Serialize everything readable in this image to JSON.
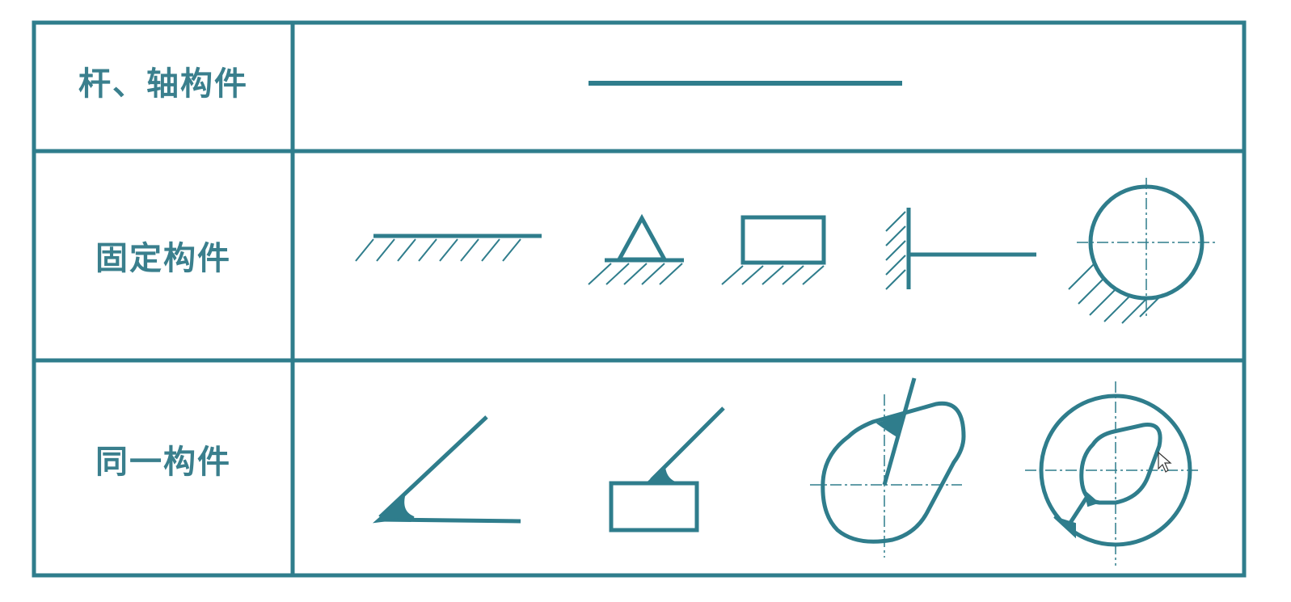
{
  "colors": {
    "stroke": "#2f7d8c",
    "label": "#3a7f8d",
    "background": "#ffffff"
  },
  "table": {
    "rows": [
      {
        "label": "杆、轴构件",
        "symbols": [
          "straight-line-rod"
        ]
      },
      {
        "label": "固定构件",
        "symbols": [
          "hatched-ground-line",
          "triangle-support-on-ground",
          "rectangle-on-ground",
          "wall-with-bar",
          "circle-with-hatched-base"
        ]
      },
      {
        "label": "同一构件",
        "symbols": [
          "welded-angle",
          "bar-welded-to-rectangle",
          "cam-with-shaft",
          "ring-with-inner-cam"
        ]
      }
    ]
  },
  "icons": [
    "mouse-cursor-icon"
  ]
}
